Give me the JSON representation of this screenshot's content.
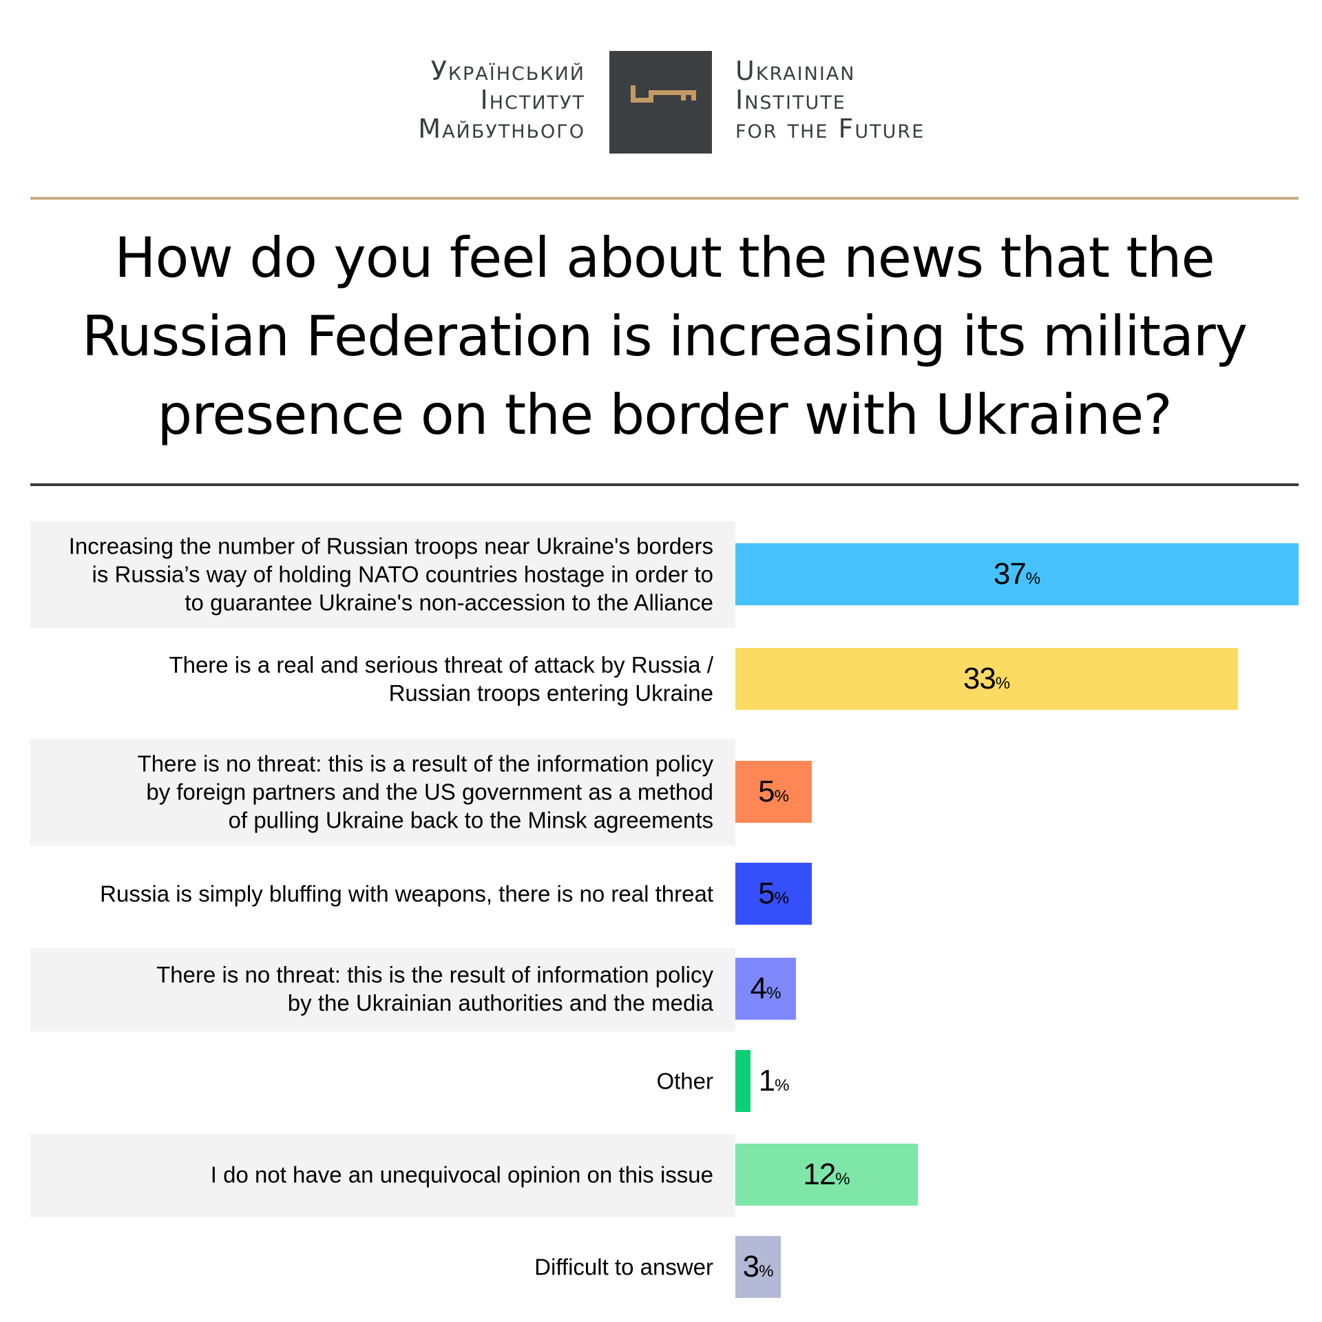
{
  "header": {
    "org_name_ua": [
      "Український",
      "Інститут",
      "Майбутнього"
    ],
    "org_name_en": [
      "Ukrainian",
      "Institute",
      "for the Future"
    ],
    "logo_icon": "key-icon",
    "colors": {
      "logo_background": "#3c3f42",
      "logo_key": "#c29a66",
      "rule_top": "#c8aa82",
      "rule_bottom": "#3a3a3a"
    }
  },
  "question": "How do you feel about the news that the Russian Federation is increasing its military presence on the border with Ukraine?",
  "chart_data": {
    "type": "bar",
    "orientation": "horizontal",
    "title": "How do you feel about the news that the Russian Federation is increasing its military presence on the border with Ukraine?",
    "xlim": [
      0,
      37
    ],
    "unit": "%",
    "categories": [
      "Increasing the number of Russian troops near Ukraine's borders is Russia’s way of holding NATO countries hostage in order to to guarantee Ukraine's non-accession to the Alliance",
      "There is a real and serious threat of attack by Russia / Russian troops entering Ukraine",
      "There is no threat: this is a result of the information policy by foreign partners and the US government as a method of pulling Ukraine back to the Minsk agreements",
      "Russia is simply bluffing with weapons, there is no real threat",
      "There is no threat: this is the result of information policy by the Ukrainian authorities and the media",
      "Other",
      "I do not have an unequivocal opinion on this issue",
      "Difficult to answer"
    ],
    "category_lines": [
      [
        "Increasing the number of Russian troops near Ukraine's borders",
        "is Russia’s way of holding NATO countries hostage in order to",
        "to guarantee Ukraine's non-accession to the Alliance"
      ],
      [
        "There is a real and serious threat of attack by Russia /",
        "Russian troops entering Ukraine"
      ],
      [
        "There is no threat: this is a result of the information policy",
        "by foreign partners and the US government as a method",
        "of pulling Ukraine back to the Minsk agreements"
      ],
      [
        "Russia is simply bluffing with weapons, there is no real threat"
      ],
      [
        "There is no threat: this is the result of information policy",
        "by the Ukrainian authorities and the media"
      ],
      [
        "Other"
      ],
      [
        "I do not have an unequivocal opinion on this issue"
      ],
      [
        "Difficult to answer"
      ]
    ],
    "values": [
      37,
      33,
      5,
      5,
      4,
      1,
      12,
      3
    ],
    "data_labels": [
      "37",
      "33",
      "5",
      "5",
      "4",
      "1",
      "12",
      "3"
    ],
    "colors": [
      "#47c1fb",
      "#fcdb63",
      "#ff8755",
      "#3550fa",
      "#7e88fb",
      "#0ccf75",
      "#7ee6a8",
      "#b4b9d6"
    ],
    "shaded_rows": [
      true,
      false,
      true,
      false,
      true,
      false,
      true,
      false
    ],
    "grid": false,
    "legend": "none"
  }
}
